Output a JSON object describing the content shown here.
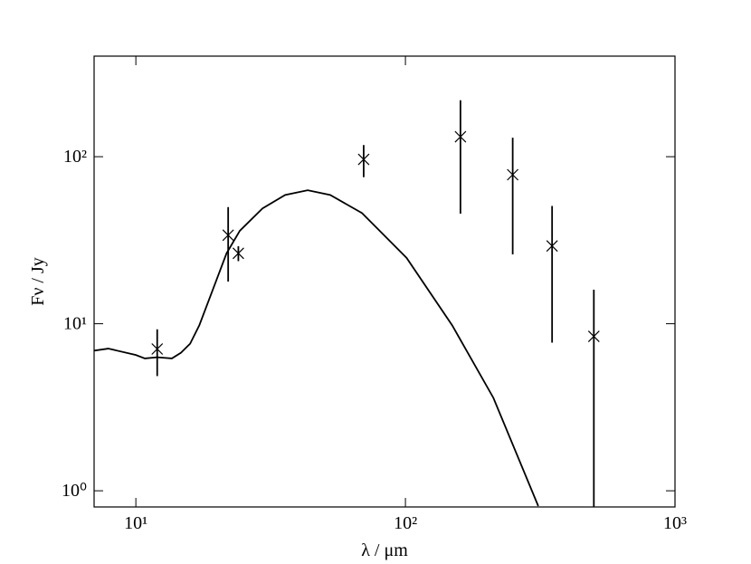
{
  "chart_data": {
    "type": "line",
    "x_label": "λ / μm",
    "y_label": "Fν / Jy",
    "xlog": true,
    "ylog": true,
    "xlim": [
      7,
      1000
    ],
    "ylim": [
      0.8,
      400
    ],
    "xticks": [
      {
        "value": 10,
        "label": "10¹"
      },
      {
        "value": 100,
        "label": "10²"
      },
      {
        "value": 1000,
        "label": "10³"
      }
    ],
    "yticks": [
      {
        "value": 1,
        "label": "10⁰"
      },
      {
        "value": 10,
        "label": "10¹"
      },
      {
        "value": 100,
        "label": "10²"
      }
    ],
    "series": [
      {
        "type": "line",
        "color": "#000000",
        "x": [
          7.0,
          7.9,
          10,
          10.8,
          12,
          13.6,
          14.7,
          15.9,
          17.2,
          19.3,
          21.7,
          24.3,
          29.5,
          35.8,
          43.4,
          52.6,
          69,
          101,
          149,
          212,
          311
        ],
        "values": [
          6.9,
          7.1,
          6.5,
          6.2,
          6.3,
          6.2,
          6.7,
          7.6,
          9.8,
          16,
          26.4,
          36,
          49,
          59,
          63,
          59,
          46,
          24.8,
          9.8,
          3.6,
          0.81
        ]
      },
      {
        "type": "errorbar",
        "color": "#000000",
        "x": [
          12,
          22,
          24,
          70,
          160,
          250,
          350,
          500
        ],
        "values": [
          7.06,
          33.9,
          26.4,
          96.4,
          131.6,
          78,
          29.2,
          8.4
        ],
        "errors": [
          2.2,
          16,
          2.7,
          21,
          86,
          52,
          21.5,
          7.6
        ]
      }
    ]
  }
}
